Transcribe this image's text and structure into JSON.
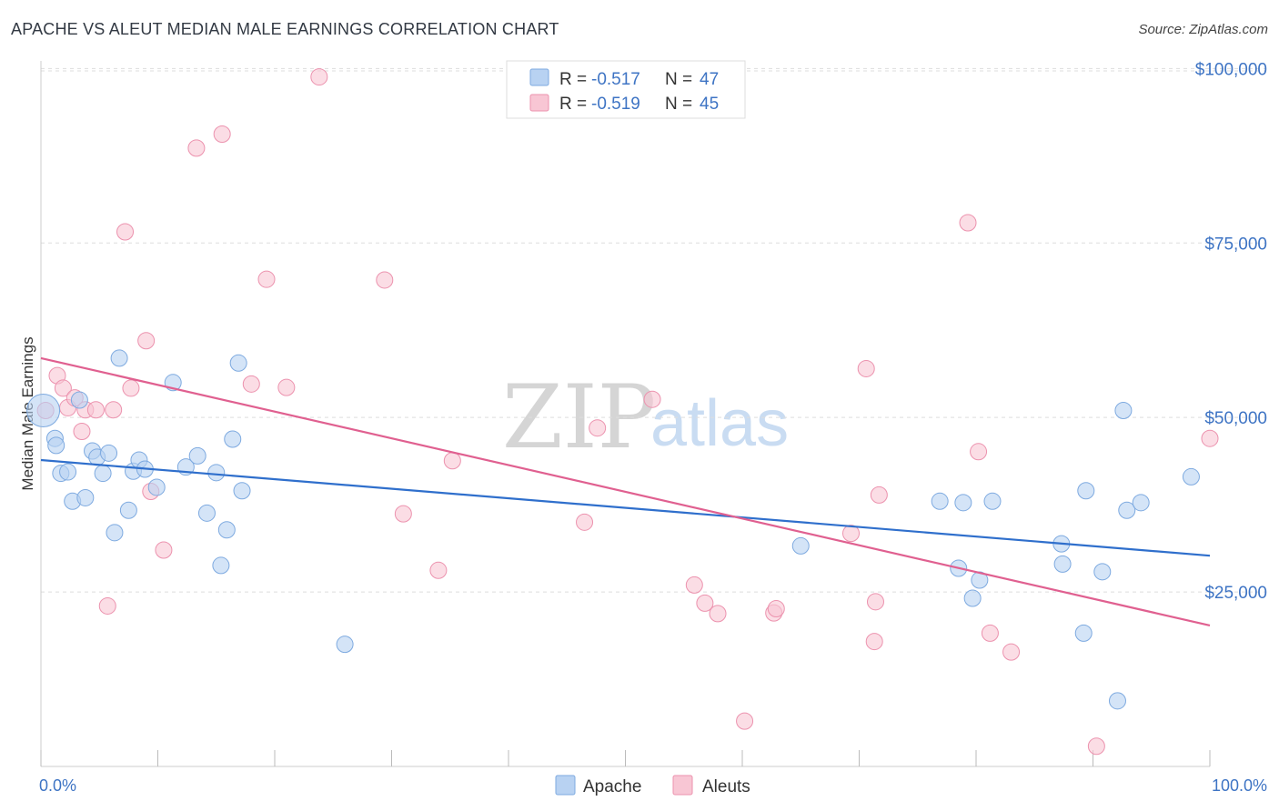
{
  "title": "APACHE VS ALEUT MEDIAN MALE EARNINGS CORRELATION CHART",
  "source": "Source: ZipAtlas.com",
  "watermark": {
    "part1": "ZIP",
    "part2": "atlas"
  },
  "colors": {
    "apache_fill": "#b8d2f2",
    "apache_stroke": "#7eaae0",
    "apache_line": "#2f6fcc",
    "aleut_fill": "#f8c6d4",
    "aleut_stroke": "#ec92ae",
    "aleut_line": "#e06090",
    "tick_text": "#3e74c4",
    "grid": "#dddddd"
  },
  "legend": {
    "rows": [
      {
        "r_label": "R =",
        "r_value": "-0.517",
        "n_label": "N =",
        "n_value": "47"
      },
      {
        "r_label": "R =",
        "r_value": "-0.519",
        "n_label": "N =",
        "n_value": "45"
      }
    ]
  },
  "bottom_legend": [
    "Apache",
    "Aleuts"
  ],
  "chart_data": {
    "type": "scatter",
    "title": "APACHE VS ALEUT MEDIAN MALE EARNINGS CORRELATION CHART",
    "xlabel": "",
    "ylabel": "Median Male Earnings",
    "xlim": [
      0,
      100
    ],
    "ylim": [
      0,
      102000
    ],
    "x_tick_labels": [
      "0.0%",
      "100.0%"
    ],
    "y_ticks": [
      25000,
      50000,
      75000,
      100000
    ],
    "y_tick_labels": [
      "$25,000",
      "$50,000",
      "$75,000",
      "$100,000"
    ],
    "grid": true,
    "series": [
      {
        "name": "Apache",
        "trend": {
          "x0": 0,
          "y0": 43900,
          "x1": 100,
          "y1": 30200
        },
        "points": [
          [
            0.2,
            51000
          ],
          [
            1.2,
            47000
          ],
          [
            1.3,
            46000
          ],
          [
            1.7,
            42000
          ],
          [
            2.3,
            42200
          ],
          [
            2.7,
            38000
          ],
          [
            3.3,
            52500
          ],
          [
            3.8,
            38500
          ],
          [
            4.4,
            45200
          ],
          [
            4.8,
            44300
          ],
          [
            5.3,
            42000
          ],
          [
            5.8,
            44900
          ],
          [
            6.3,
            33500
          ],
          [
            6.7,
            58500
          ],
          [
            7.5,
            36700
          ],
          [
            7.9,
            42300
          ],
          [
            8.4,
            43900
          ],
          [
            8.9,
            42600
          ],
          [
            9.9,
            40000
          ],
          [
            11.3,
            55000
          ],
          [
            12.4,
            42900
          ],
          [
            13.4,
            44500
          ],
          [
            14.2,
            36300
          ],
          [
            15.0,
            42100
          ],
          [
            15.4,
            28800
          ],
          [
            15.9,
            33900
          ],
          [
            16.4,
            46900
          ],
          [
            16.9,
            57800
          ],
          [
            17.2,
            39500
          ],
          [
            26.0,
            17500
          ],
          [
            65.0,
            31600
          ],
          [
            76.9,
            38000
          ],
          [
            78.5,
            28400
          ],
          [
            78.9,
            37800
          ],
          [
            79.7,
            24100
          ],
          [
            80.3,
            26700
          ],
          [
            81.4,
            38000
          ],
          [
            87.3,
            31900
          ],
          [
            87.4,
            29000
          ],
          [
            89.2,
            19100
          ],
          [
            89.4,
            39500
          ],
          [
            90.8,
            27900
          ],
          [
            92.1,
            9400
          ],
          [
            92.6,
            51000
          ],
          [
            92.9,
            36700
          ],
          [
            94.1,
            37800
          ],
          [
            98.4,
            41500
          ]
        ]
      },
      {
        "name": "Aleuts",
        "trend": {
          "x0": 0,
          "y0": 58500,
          "x1": 100,
          "y1": 20200
        },
        "points": [
          [
            0.4,
            51000
          ],
          [
            1.4,
            56000
          ],
          [
            1.9,
            54200
          ],
          [
            2.3,
            51400
          ],
          [
            2.9,
            52800
          ],
          [
            3.5,
            48000
          ],
          [
            3.8,
            51100
          ],
          [
            4.7,
            51100
          ],
          [
            5.7,
            23000
          ],
          [
            6.2,
            51100
          ],
          [
            7.2,
            76600
          ],
          [
            7.7,
            54200
          ],
          [
            9.0,
            61000
          ],
          [
            9.4,
            39400
          ],
          [
            10.5,
            31000
          ],
          [
            13.3,
            88600
          ],
          [
            15.5,
            90600
          ],
          [
            18.0,
            54800
          ],
          [
            19.3,
            69800
          ],
          [
            21.0,
            54300
          ],
          [
            23.8,
            98800
          ],
          [
            29.4,
            69700
          ],
          [
            31.0,
            36200
          ],
          [
            34.0,
            28100
          ],
          [
            35.2,
            43800
          ],
          [
            46.5,
            35000
          ],
          [
            47.6,
            48500
          ],
          [
            52.3,
            52600
          ],
          [
            55.9,
            26000
          ],
          [
            56.8,
            23400
          ],
          [
            57.9,
            21900
          ],
          [
            60.2,
            6500
          ],
          [
            62.7,
            22000
          ],
          [
            62.9,
            22600
          ],
          [
            69.3,
            33400
          ],
          [
            70.6,
            57000
          ],
          [
            71.3,
            17900
          ],
          [
            71.4,
            23600
          ],
          [
            71.7,
            38900
          ],
          [
            79.3,
            77900
          ],
          [
            80.2,
            45100
          ],
          [
            81.2,
            19100
          ],
          [
            83.0,
            16400
          ],
          [
            90.3,
            2900
          ],
          [
            100.0,
            47000
          ]
        ]
      }
    ]
  }
}
